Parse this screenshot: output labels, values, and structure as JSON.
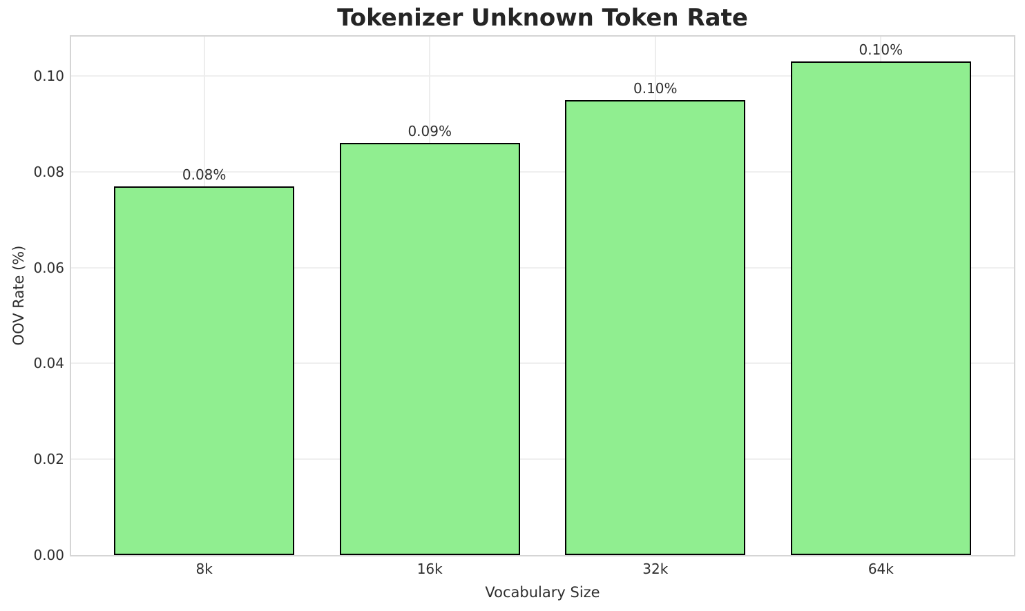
{
  "chart_data": {
    "type": "bar",
    "title": "Tokenizer Unknown Token Rate",
    "xlabel": "Vocabulary Size",
    "ylabel": "OOV Rate (%)",
    "categories": [
      "8k",
      "16k",
      "32k",
      "64k"
    ],
    "values": [
      0.077,
      0.086,
      0.095,
      0.103
    ],
    "bar_labels": [
      "0.08%",
      "0.09%",
      "0.10%",
      "0.10%"
    ],
    "ytick_values": [
      0.0,
      0.02,
      0.04,
      0.06,
      0.08,
      0.1
    ],
    "ytick_labels": [
      "0.00",
      "0.02",
      "0.04",
      "0.06",
      "0.08",
      "0.10"
    ],
    "ylim": [
      0,
      0.1082
    ],
    "xlim": [
      -0.59,
      3.59
    ],
    "bar_width": 0.8,
    "grid": true,
    "legend": false,
    "colors": {
      "bar_fill": "#90EE90",
      "bar_edge": "#000000",
      "grid_line": "#efefef",
      "spine": "#d5d5d5",
      "text": "#2e2e2e",
      "title_text": "#252525",
      "background": "#ffffff"
    }
  }
}
